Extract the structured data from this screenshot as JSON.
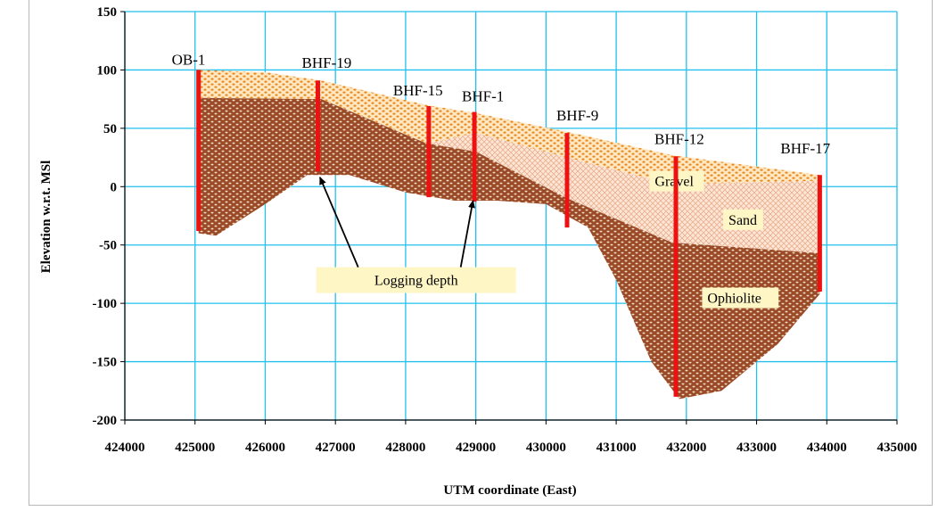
{
  "chart_data": {
    "type": "area",
    "title": "",
    "xlabel": "UTM coordinate (East)",
    "ylabel": "Elevation w.r.t. MSl",
    "xlim": [
      424000,
      435000
    ],
    "ylim": [
      -200,
      150
    ],
    "x_ticks": [
      "424000",
      "425000",
      "426000",
      "427000",
      "428000",
      "429000",
      "430000",
      "431000",
      "432000",
      "433000",
      "434000",
      "435000"
    ],
    "y_ticks": [
      "150",
      "100",
      "50",
      "0",
      "-50",
      "-100",
      "-150",
      "-200"
    ],
    "grid": true,
    "layers": [
      {
        "name": "Gravel",
        "label": "Gravel",
        "color": "#f0a850",
        "top": [
          [
            425050,
            100
          ],
          [
            426000,
            98
          ],
          [
            426800,
            91
          ],
          [
            428300,
            70
          ],
          [
            429000,
            63
          ],
          [
            430300,
            47
          ],
          [
            431800,
            27
          ],
          [
            433900,
            10
          ]
        ],
        "bottom": [
          [
            425050,
            76
          ],
          [
            426800,
            75
          ],
          [
            428300,
            37
          ],
          [
            429000,
            46
          ],
          [
            430300,
            25
          ],
          [
            431800,
            2
          ],
          [
            433900,
            5
          ]
        ]
      },
      {
        "name": "Sand",
        "label": "Sand",
        "color": "#f7d3b8",
        "top": [
          [
            425050,
            76
          ],
          [
            426800,
            75
          ],
          [
            428300,
            37
          ],
          [
            429000,
            46
          ],
          [
            430300,
            25
          ],
          [
            431800,
            2
          ],
          [
            433900,
            5
          ]
        ],
        "bottom": [
          [
            425050,
            76
          ],
          [
            426800,
            75
          ],
          [
            428300,
            37
          ],
          [
            429000,
            30
          ],
          [
            430300,
            -10
          ],
          [
            431800,
            -48
          ],
          [
            433900,
            -57
          ]
        ]
      },
      {
        "name": "Ophiolite",
        "label": "Ophiolite",
        "color": "#9b4a24",
        "top": [
          [
            425050,
            76
          ],
          [
            426800,
            75
          ],
          [
            428300,
            37
          ],
          [
            429000,
            30
          ],
          [
            430300,
            -10
          ],
          [
            431800,
            -48
          ],
          [
            433900,
            -57
          ]
        ],
        "bottom": [
          [
            425050,
            -40
          ],
          [
            425300,
            -42
          ],
          [
            426000,
            -15
          ],
          [
            426600,
            10
          ],
          [
            427200,
            10
          ],
          [
            428000,
            -5
          ],
          [
            428700,
            -12
          ],
          [
            429300,
            -12
          ],
          [
            430000,
            -15
          ],
          [
            430600,
            -35
          ],
          [
            431000,
            -80
          ],
          [
            431500,
            -150
          ],
          [
            431900,
            -182
          ],
          [
            432500,
            -175
          ],
          [
            433300,
            -135
          ],
          [
            433900,
            -92
          ]
        ]
      }
    ],
    "boreholes": [
      {
        "name": "OB-1",
        "x": 425050,
        "top": 100,
        "bottom": -38
      },
      {
        "name": "BHF-19",
        "x": 426750,
        "top": 91,
        "bottom": 13
      },
      {
        "name": "BHF-15",
        "x": 428330,
        "top": 69,
        "bottom": -9
      },
      {
        "name": "BHF-1",
        "x": 428980,
        "top": 64,
        "bottom": -13
      },
      {
        "name": "BHF-9",
        "x": 430300,
        "top": 46,
        "bottom": -35
      },
      {
        "name": "BHF-12",
        "x": 431850,
        "top": 26,
        "bottom": -180
      },
      {
        "name": "BHF-17",
        "x": 433900,
        "top": 10,
        "bottom": -90
      }
    ],
    "annotations": [
      {
        "text": "Logging depth"
      }
    ]
  }
}
